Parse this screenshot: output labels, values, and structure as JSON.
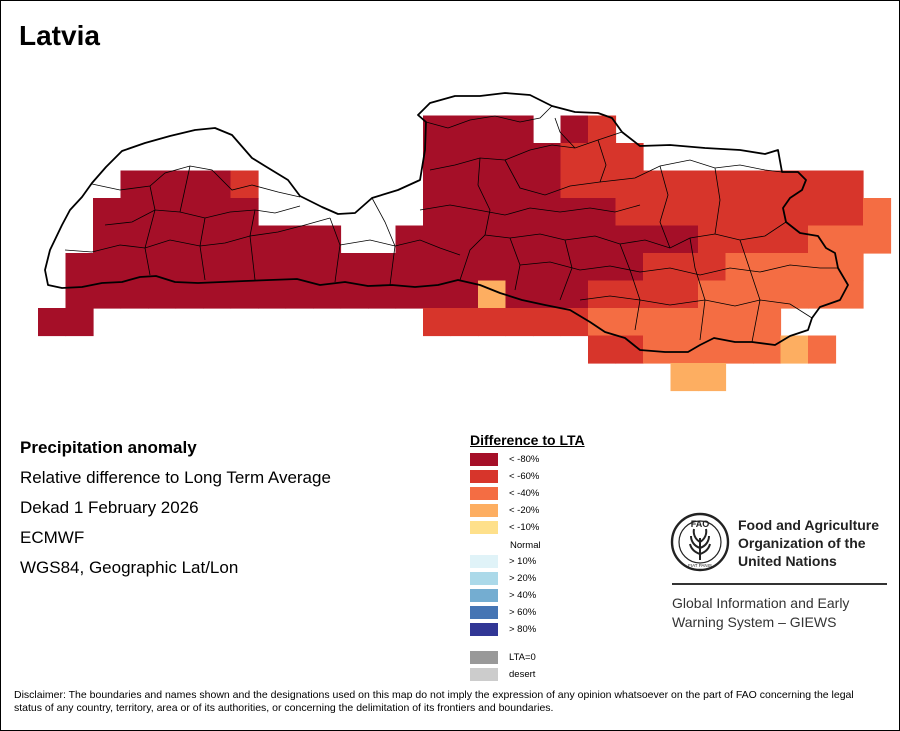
{
  "map": {
    "country_title": "Latvia"
  },
  "info": {
    "title": "Precipitation anomaly",
    "subtitle": "Relative difference to Long Term Average",
    "period": "Dekad 1 February 2026",
    "source": "ECMWF",
    "projection": "WGS84, Geographic Lat/Lon"
  },
  "legend": {
    "title": "Difference to LTA",
    "normal_label": "Normal",
    "items": [
      {
        "label": "< -80%",
        "color": "#a50f28"
      },
      {
        "label": "< -60%",
        "color": "#d7352b"
      },
      {
        "label": "< -40%",
        "color": "#f46d43"
      },
      {
        "label": "< -20%",
        "color": "#fdae61"
      },
      {
        "label": "< -10%",
        "color": "#fee08b"
      },
      {
        "label": "> 10%",
        "color": "#e0f3f8"
      },
      {
        "label": "> 20%",
        "color": "#abd9e9"
      },
      {
        "label": "> 40%",
        "color": "#74add1"
      },
      {
        "label": "> 60%",
        "color": "#4575b4"
      },
      {
        "label": "> 80%",
        "color": "#313695"
      },
      {
        "label": "LTA=0",
        "color": "#999999"
      },
      {
        "label": "desert",
        "color": "#cccccc"
      }
    ]
  },
  "logo": {
    "org_name": "Food and Agriculture\nOrganization of the\nUnited Nations",
    "emblem_text": "FAO",
    "emblem_motto": "FIAT PANIS",
    "program": "Global Information and Early\nWarning System – GIEWS"
  },
  "disclaimer": "Disclaimer: The boundaries and names shown and the designations used on this map do not imply the expression of any opinion whatsoever on the part of FAO concerning the legal status of any country, territory, area or of its authorities, or concerning the delimitation of its frontiers and boundaries."
}
